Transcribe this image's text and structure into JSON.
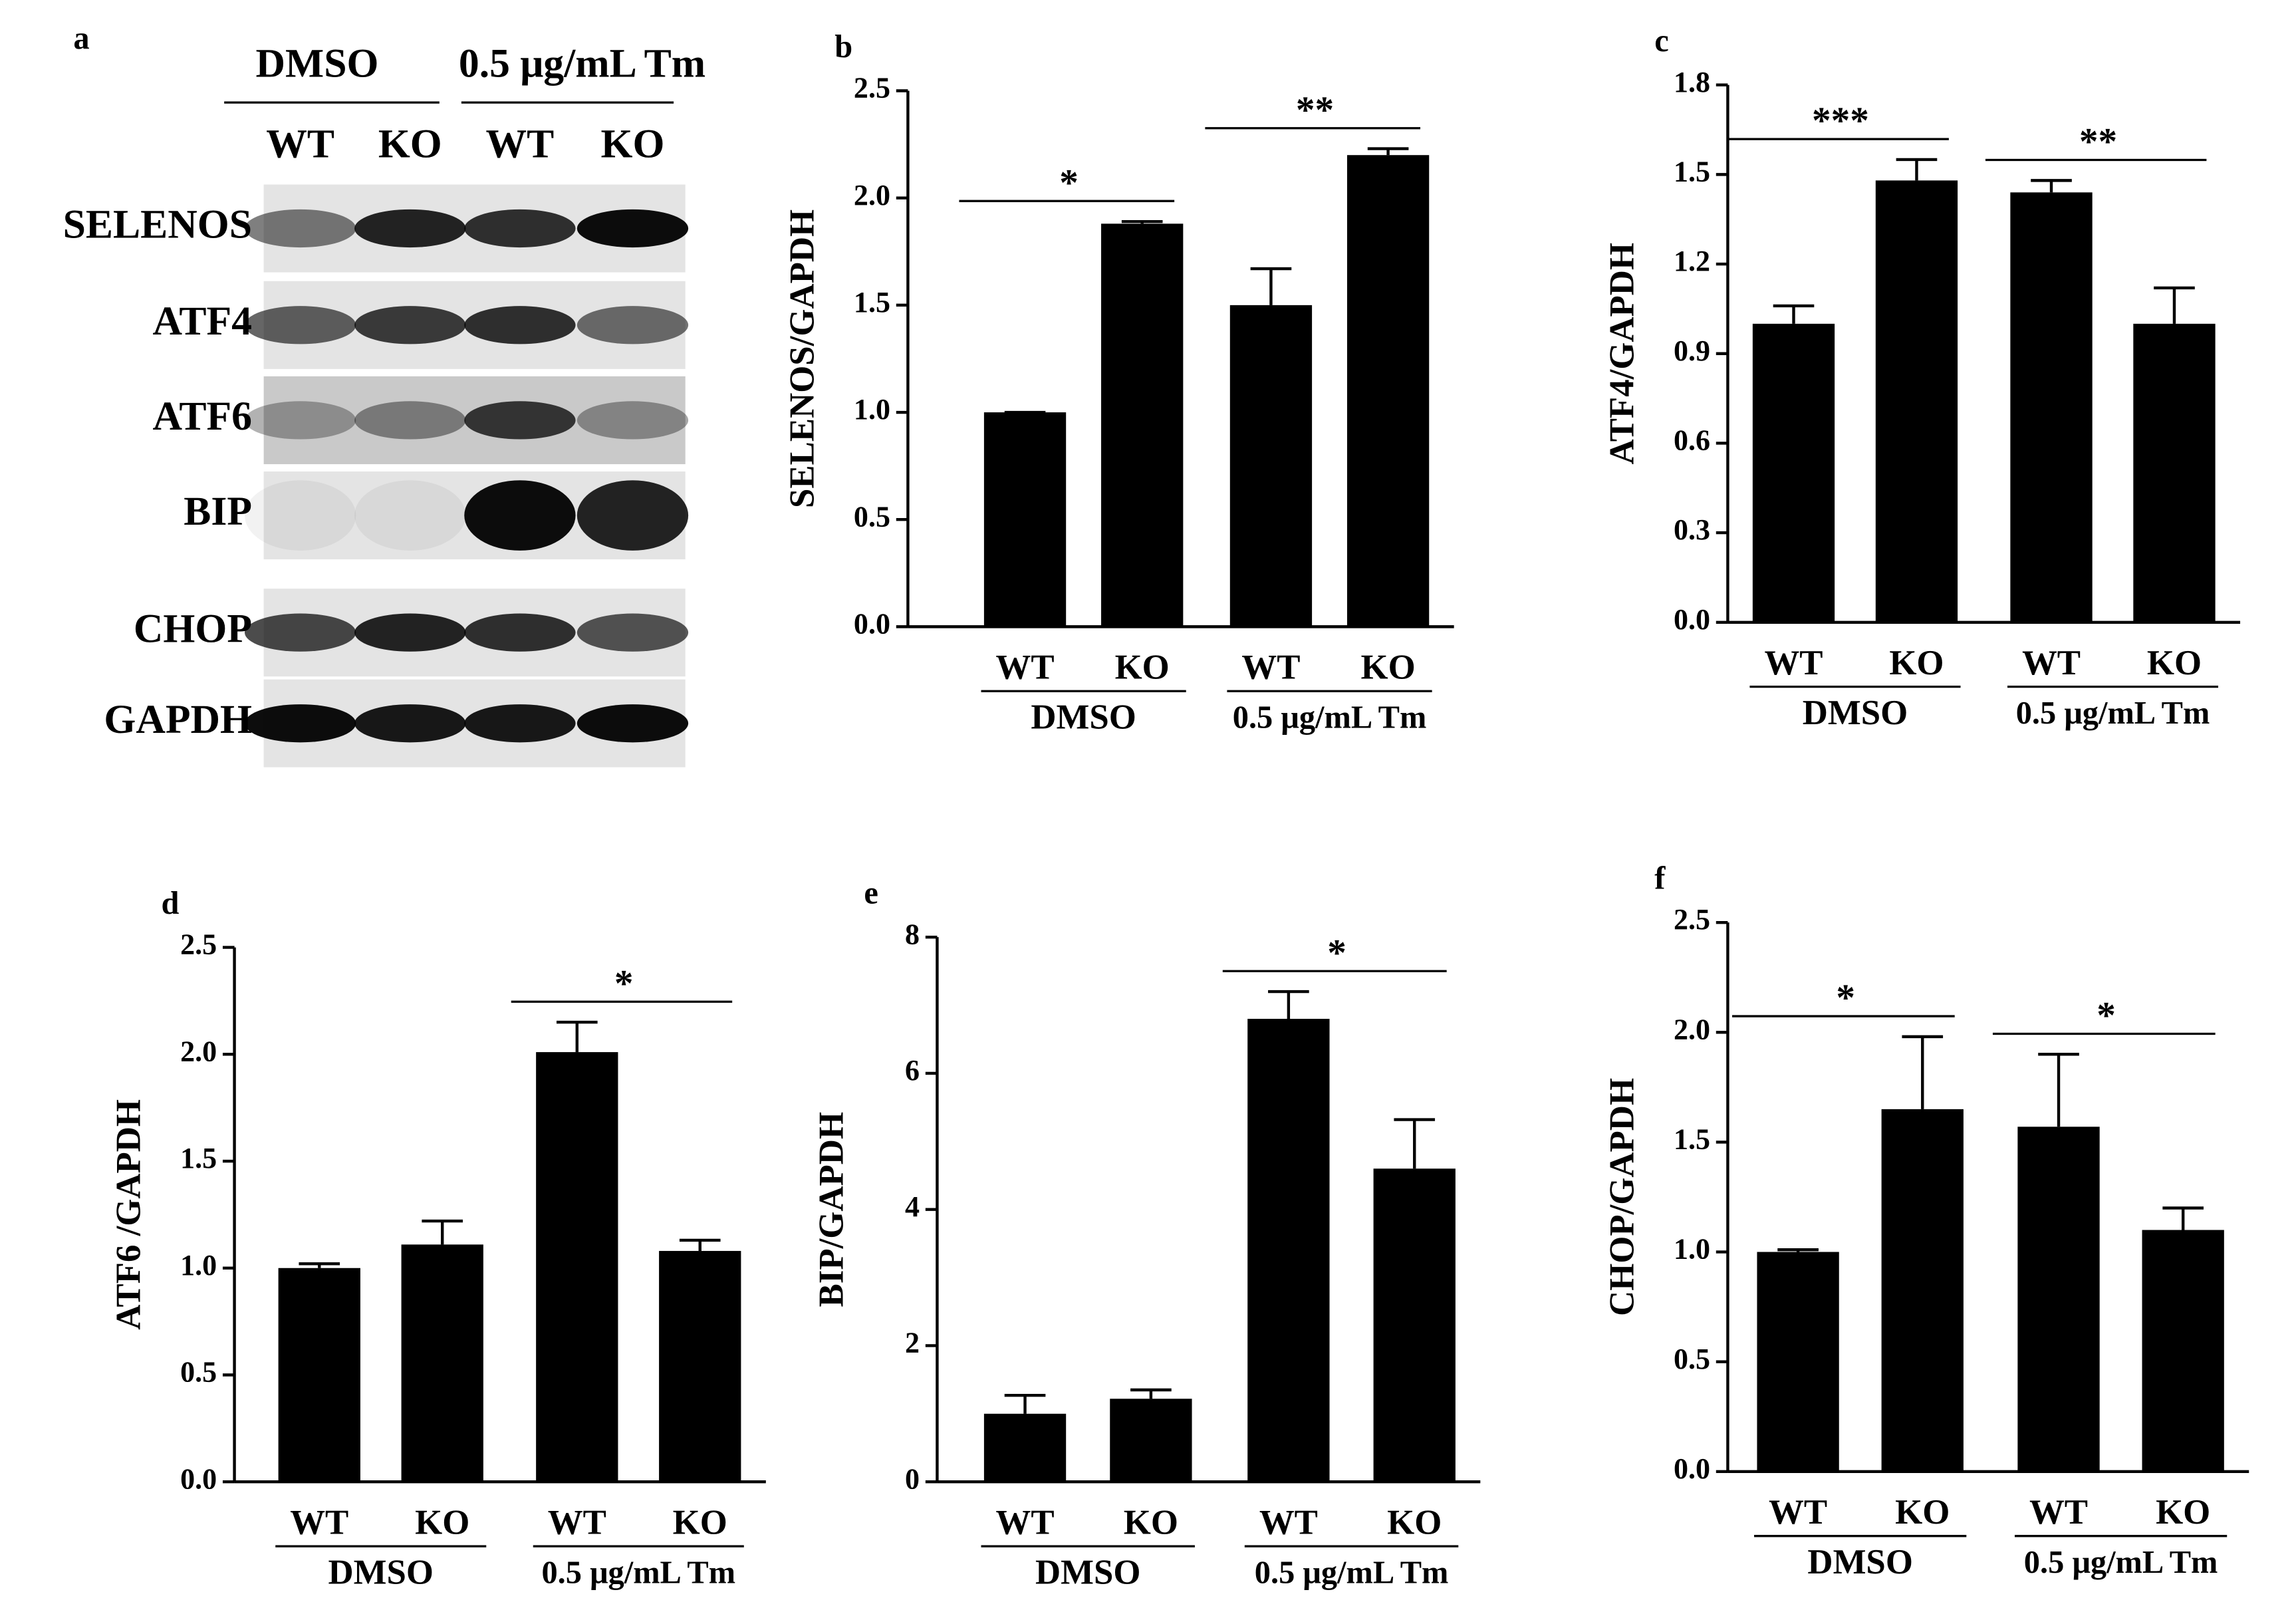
{
  "blot": {
    "panel_label": "a",
    "groups": [
      "DMSO",
      "0.5 μg/mL Tm"
    ],
    "lanes": [
      "WT",
      "KO",
      "WT",
      "KO"
    ],
    "rows": [
      "SELENOS",
      "ATF4",
      "ATF6",
      "BIP",
      "CHOP",
      "GAPDH"
    ]
  },
  "chart_data": [
    {
      "type": "bar",
      "panel_label": "b",
      "ylabel": "SELENOS/GAPDH",
      "categories": [
        "WT",
        "KO",
        "WT",
        "KO"
      ],
      "groups": [
        "DMSO",
        "0.5 μg/mL Tm"
      ],
      "values": [
        1.0,
        1.88,
        1.5,
        2.2
      ],
      "errors": [
        0,
        0.01,
        0.17,
        0.03
      ],
      "color": "#000000",
      "significance": [
        "*",
        "**"
      ],
      "ylim": [
        0,
        2.5
      ],
      "yticks": [
        {
          "value": 0,
          "label": "0.0"
        },
        0.5,
        {
          "value": 1,
          "label": "1.0"
        },
        1.5,
        {
          "value": 2,
          "label": "2.0"
        },
        2.5
      ]
    },
    {
      "type": "bar",
      "panel_label": "c",
      "ylabel": "ATF4/GAPDH",
      "categories": [
        "WT",
        "KO",
        "WT",
        "KO"
      ],
      "groups": [
        "DMSO",
        "0.5 μg/mL Tm"
      ],
      "values": [
        1.0,
        1.48,
        1.44,
        1.0
      ],
      "errors": [
        0.06,
        0.07,
        0.04,
        0.12
      ],
      "color": "#000000",
      "significance": [
        "***",
        "**"
      ],
      "ylim": [
        0,
        1.8
      ],
      "yticks": [
        {
          "value": 0,
          "label": "0.0"
        },
        0.3,
        0.6,
        0.9,
        1.2,
        1.5,
        1.8
      ]
    },
    {
      "type": "bar",
      "panel_label": "d",
      "ylabel": "ATF6 /GAPDH",
      "categories": [
        "WT",
        "KO",
        "WT",
        "KO"
      ],
      "groups": [
        "DMSO",
        "0.5 μg/mL Tm"
      ],
      "values": [
        1.0,
        1.11,
        2.01,
        1.08
      ],
      "errors": [
        0.02,
        0.11,
        0.14,
        0.05
      ],
      "color": "#000000",
      "significance": [
        null,
        "*"
      ],
      "ylim": [
        0,
        2.5
      ],
      "yticks": [
        {
          "value": 0,
          "label": "0.0"
        },
        0.5,
        {
          "value": 1,
          "label": "1.0"
        },
        1.5,
        {
          "value": 2,
          "label": "2.0"
        },
        2.5
      ]
    },
    {
      "type": "bar",
      "panel_label": "e",
      "ylabel": "BIP/GAPDH",
      "categories": [
        "WT",
        "KO",
        "WT",
        "KO"
      ],
      "groups": [
        "DMSO",
        "0.5 μg/mL Tm"
      ],
      "values": [
        1.0,
        1.22,
        6.8,
        4.6
      ],
      "errors": [
        0.27,
        0.13,
        0.4,
        0.72
      ],
      "color": "#000000",
      "significance": [
        null,
        "*"
      ],
      "ylim": [
        0,
        8
      ],
      "yticks": [
        0,
        2,
        4,
        6,
        8
      ]
    },
    {
      "type": "bar",
      "panel_label": "f",
      "ylabel": "CHOP/GAPDH",
      "categories": [
        "WT",
        "KO",
        "WT",
        "KO"
      ],
      "groups": [
        "DMSO",
        "0.5 μg/mL Tm"
      ],
      "values": [
        1.0,
        1.65,
        1.57,
        1.1
      ],
      "errors": [
        0.01,
        0.33,
        0.33,
        0.1
      ],
      "color": "#000000",
      "significance": [
        "*",
        "*"
      ],
      "ylim": [
        0,
        2.5
      ],
      "yticks": [
        {
          "value": 0,
          "label": "0.0"
        },
        0.5,
        {
          "value": 1,
          "label": "1.0"
        },
        1.5,
        {
          "value": 2,
          "label": "2.0"
        },
        2.5
      ]
    }
  ]
}
